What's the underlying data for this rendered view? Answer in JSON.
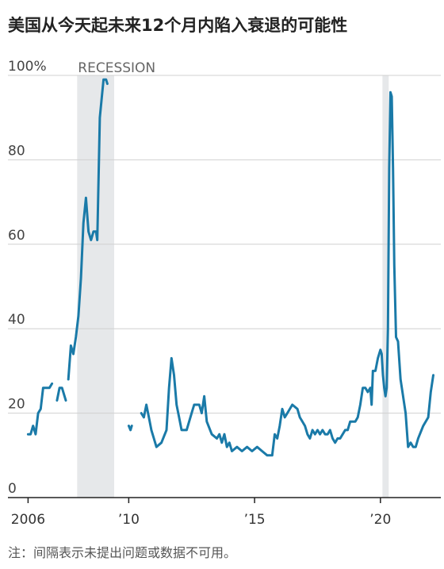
{
  "title": "美国从今天起未来12个月内陷入衰退的可能性",
  "note": "注：间隔表示未提出问题或数据不可用。",
  "colors": {
    "line": "#1a7aa8",
    "recession": "#e6e8ea",
    "grid": "#d0d0d0",
    "axis": "#222222"
  },
  "chart_data": {
    "type": "line",
    "title": "美国从今天起未来12个月内陷入衰退的可能性",
    "xlabel": "",
    "ylabel": "",
    "xlim": [
      2005.2,
      2022.4
    ],
    "ylim": [
      0,
      100
    ],
    "y_ticks": [
      {
        "value": 0,
        "label": "0"
      },
      {
        "value": 20,
        "label": "20"
      },
      {
        "value": 40,
        "label": "40"
      },
      {
        "value": 60,
        "label": "60"
      },
      {
        "value": 80,
        "label": "80"
      },
      {
        "value": 100,
        "label": "100%"
      }
    ],
    "x_ticks": [
      {
        "value": 2006,
        "label": "2006"
      },
      {
        "value": 2010,
        "label": "’10"
      },
      {
        "value": 2015,
        "label": "’15"
      },
      {
        "value": 2020,
        "label": "’20"
      }
    ],
    "grid": true,
    "recessions": [
      {
        "label": "RECESSION",
        "start": 2007.95,
        "end": 2009.42
      },
      {
        "label": "",
        "start": 2020.08,
        "end": 2020.33
      }
    ],
    "series": [
      {
        "segments": [
          [
            [
              2006.0,
              15
            ],
            [
              2006.1,
              15
            ],
            [
              2006.2,
              17
            ],
            [
              2006.3,
              15
            ],
            [
              2006.4,
              20
            ],
            [
              2006.5,
              21
            ],
            [
              2006.6,
              26
            ],
            [
              2006.7,
              26
            ],
            [
              2006.85,
              26
            ],
            [
              2006.95,
              27
            ]
          ],
          [
            [
              2007.15,
              23
            ],
            [
              2007.25,
              26
            ],
            [
              2007.35,
              26
            ],
            [
              2007.5,
              23
            ]
          ],
          [
            [
              2007.6,
              28
            ],
            [
              2007.7,
              36
            ],
            [
              2007.8,
              34
            ],
            [
              2007.9,
              38
            ],
            [
              2008.0,
              43
            ],
            [
              2008.1,
              52
            ],
            [
              2008.2,
              65
            ],
            [
              2008.3,
              71
            ],
            [
              2008.4,
              63
            ],
            [
              2008.5,
              61
            ],
            [
              2008.6,
              63
            ],
            [
              2008.7,
              63
            ],
            [
              2008.75,
              61
            ],
            [
              2008.85,
              90
            ],
            [
              2008.95,
              96
            ],
            [
              2009.0,
              99
            ],
            [
              2009.1,
              99
            ],
            [
              2009.15,
              98
            ]
          ],
          [
            [
              2010.0,
              17
            ],
            [
              2010.07,
              16
            ],
            [
              2010.12,
              17
            ]
          ],
          [
            [
              2010.5,
              20
            ],
            [
              2010.6,
              19
            ],
            [
              2010.7,
              22
            ],
            [
              2010.8,
              19
            ],
            [
              2010.9,
              16
            ],
            [
              2011.0,
              14
            ],
            [
              2011.1,
              12
            ],
            [
              2011.3,
              13
            ],
            [
              2011.5,
              16
            ],
            [
              2011.6,
              26
            ],
            [
              2011.7,
              33
            ],
            [
              2011.8,
              29
            ],
            [
              2011.9,
              22
            ],
            [
              2012.0,
              19
            ],
            [
              2012.1,
              16
            ],
            [
              2012.3,
              16
            ],
            [
              2012.5,
              20
            ],
            [
              2012.6,
              22
            ],
            [
              2012.8,
              22
            ],
            [
              2012.9,
              20
            ],
            [
              2013.0,
              24
            ],
            [
              2013.1,
              18
            ],
            [
              2013.3,
              15
            ],
            [
              2013.5,
              14
            ],
            [
              2013.6,
              15
            ],
            [
              2013.7,
              13
            ],
            [
              2013.8,
              15
            ],
            [
              2013.9,
              12
            ],
            [
              2014.0,
              13
            ],
            [
              2014.1,
              11
            ],
            [
              2014.3,
              12
            ],
            [
              2014.5,
              11
            ],
            [
              2014.7,
              12
            ],
            [
              2014.9,
              11
            ],
            [
              2015.1,
              12
            ],
            [
              2015.3,
              11
            ],
            [
              2015.5,
              10
            ],
            [
              2015.7,
              10
            ],
            [
              2015.8,
              15
            ],
            [
              2015.9,
              14
            ],
            [
              2016.0,
              17
            ],
            [
              2016.1,
              21
            ],
            [
              2016.2,
              19
            ],
            [
              2016.3,
              20
            ],
            [
              2016.5,
              22
            ],
            [
              2016.7,
              21
            ],
            [
              2016.8,
              19
            ],
            [
              2017.0,
              17
            ],
            [
              2017.1,
              15
            ],
            [
              2017.2,
              14
            ],
            [
              2017.3,
              16
            ],
            [
              2017.4,
              15
            ],
            [
              2017.5,
              16
            ],
            [
              2017.6,
              15
            ],
            [
              2017.7,
              16
            ],
            [
              2017.8,
              15
            ],
            [
              2017.9,
              15
            ],
            [
              2018.0,
              16
            ],
            [
              2018.1,
              14
            ],
            [
              2018.2,
              13
            ],
            [
              2018.3,
              14
            ],
            [
              2018.4,
              14
            ],
            [
              2018.5,
              15
            ],
            [
              2018.6,
              16
            ],
            [
              2018.7,
              16
            ],
            [
              2018.8,
              18
            ],
            [
              2018.9,
              18
            ],
            [
              2019.0,
              18
            ],
            [
              2019.1,
              19
            ],
            [
              2019.2,
              22
            ],
            [
              2019.3,
              26
            ],
            [
              2019.4,
              26
            ],
            [
              2019.5,
              25
            ],
            [
              2019.6,
              26
            ],
            [
              2019.65,
              22
            ],
            [
              2019.7,
              30
            ],
            [
              2019.8,
              30
            ],
            [
              2019.9,
              33
            ],
            [
              2020.0,
              35
            ],
            [
              2020.05,
              34
            ],
            [
              2020.1,
              29
            ],
            [
              2020.15,
              26
            ],
            [
              2020.2,
              24
            ],
            [
              2020.25,
              26
            ],
            [
              2020.3,
              40
            ],
            [
              2020.35,
              78
            ],
            [
              2020.4,
              96
            ],
            [
              2020.45,
              95
            ],
            [
              2020.5,
              78
            ],
            [
              2020.55,
              55
            ],
            [
              2020.62,
              38
            ],
            [
              2020.7,
              37
            ],
            [
              2020.8,
              28
            ],
            [
              2021.0,
              20
            ],
            [
              2021.1,
              12
            ],
            [
              2021.2,
              13
            ],
            [
              2021.3,
              12
            ],
            [
              2021.4,
              12
            ],
            [
              2021.5,
              14
            ],
            [
              2021.7,
              17
            ],
            [
              2021.9,
              19
            ],
            [
              2022.0,
              25
            ],
            [
              2022.1,
              29
            ]
          ]
        ]
      }
    ]
  }
}
